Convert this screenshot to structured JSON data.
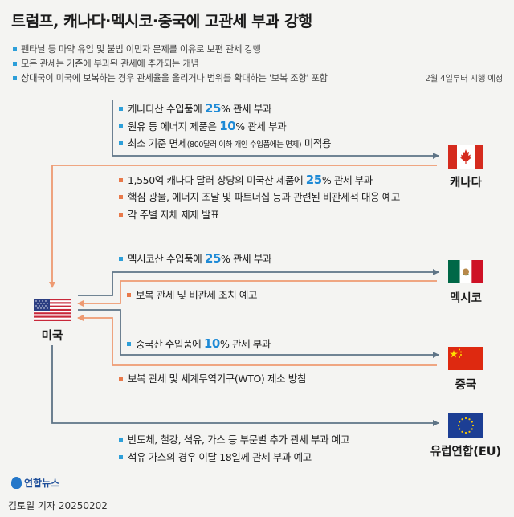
{
  "title": "트럼프, 캐나다·멕시코·중국에 고관세 부과 강행",
  "bullets": [
    "펜타닐 등 마약 유입 및 불법 이민자 문제를 이유로 보편 관세 강행",
    "모든 관세는 기존에 부과된 관세에 추가되는 개념",
    "상대국이 미국에 보복하는 경우 관세율을 올리거나 범위를 확대하는 '보복 조항' 포함"
  ],
  "effective_date": "2월 4일부터 시행 예정",
  "origin": {
    "name": "미국",
    "flag_icon": "us-flag-icon"
  },
  "countries": {
    "canada": {
      "name": "캐나다",
      "outbound": [
        {
          "pre": "캐나다산 수입품에 ",
          "hl": "25",
          "post": "% 관세 부과"
        },
        {
          "pre": "원유 등 에너지 제품은 ",
          "hl": "10",
          "post": "% 관세 부과"
        },
        {
          "pre": "최소 기준 면제",
          "small": "(800달러 이하 개인 수입품에는 면제)",
          "post": " 미적용"
        }
      ],
      "retaliation": [
        {
          "pre": "1,550억 캐나다 달러 상당의 미국산 제품에 ",
          "hl": "25",
          "post": "% 관세 부과"
        },
        {
          "pre": "핵심 광물, 에너지 조달 및 파트너십 등과 관련된 비관세적 대응 예고"
        },
        {
          "pre": "각 주별 자체 제재 발표"
        }
      ]
    },
    "mexico": {
      "name": "멕시코",
      "outbound": [
        {
          "pre": "멕시코산 수입품에 ",
          "hl": "25",
          "post": "% 관세 부과"
        }
      ],
      "retaliation": [
        {
          "pre": "보복 관세 및 비관세 조치 예고"
        }
      ]
    },
    "china": {
      "name": "중국",
      "outbound": [
        {
          "pre": "중국산 수입품에 ",
          "hl": "10",
          "post": "% 관세 부과"
        }
      ],
      "retaliation": [
        {
          "pre": "보복 관세 및 세계무역기구(WTO) 제소 방침"
        }
      ]
    },
    "eu": {
      "name": "유럽연합(EU)",
      "outbound": [
        {
          "pre": "반도체, 철강, 석유, 가스 등 부문별 추가 관세 부과 예고"
        },
        {
          "pre": "석유 가스의 경우 이달 18일께 관세 부과 예고"
        }
      ]
    }
  },
  "colors": {
    "outbound": "#5e7486",
    "retaliation": "#ee9a72",
    "highlight": "#1e8ad6",
    "bullet": "#2d9fd9"
  },
  "logo_text": "연합뉴스",
  "credit": "김토일 기자  20250202"
}
